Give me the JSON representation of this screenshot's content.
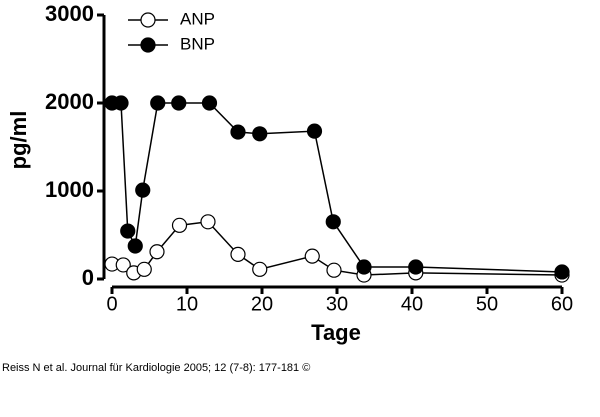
{
  "chart_data": {
    "type": "line",
    "x_label": "Tage",
    "y_label": "pg/ml",
    "xlim": [
      0,
      60
    ],
    "xticks": [
      0,
      10,
      20,
      30,
      40,
      50,
      60
    ],
    "ylim": [
      0,
      3000
    ],
    "yticks": [
      0,
      1000,
      2000,
      3000
    ],
    "legend": "top-left",
    "series": [
      {
        "name": "ANP",
        "color": "#ffffff",
        "x": [
          0,
          1.5,
          2.9,
          4.3,
          6,
          9,
          12.8,
          16.8,
          19.7,
          26.7,
          29.6,
          33.6,
          40.5,
          60
        ],
        "values": [
          170,
          160,
          70,
          110,
          310,
          610,
          650,
          280,
          110,
          260,
          100,
          45,
          70,
          45
        ]
      },
      {
        "name": "BNP",
        "color": "#000000",
        "x": [
          0,
          1.2,
          2.1,
          3.1,
          4.1,
          6.1,
          8.9,
          13,
          16.8,
          19.7,
          27,
          29.5,
          33.6,
          40.5,
          60
        ],
        "values": [
          2000,
          2000,
          545,
          375,
          1010,
          2000,
          2000,
          2000,
          1670,
          1650,
          1680,
          650,
          136,
          136,
          80
        ]
      }
    ],
    "caption": "Reiss N et al. Journal für Kardiologie 2005; 12 (7-8): 177-181 ©"
  }
}
